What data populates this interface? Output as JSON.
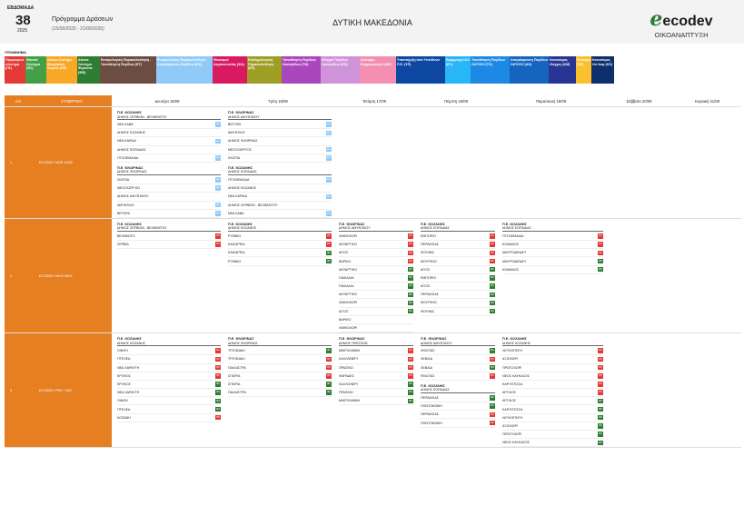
{
  "header": {
    "week_label": "ΕΒΔΟΜΑΔΑ",
    "week_number": "38",
    "year": "2025",
    "program_title": "Πρόγραμμα Δράσεων",
    "date_range": "(15/09/2025 - 21/09/2025)",
    "region": "ΔΥΤΙΚΗ ΜΑΚΕΔΟΝΙΑ",
    "logo_e": "e",
    "logo_text": "ecodev",
    "logo_sub": "ΟΙΚΟΑΝΑΠΤΥΞΗ",
    "brand_color": "#2e7d32"
  },
  "legend": {
    "title": "ΥΠΟΜΝΗΜΑ",
    "items": [
      {
        "label": "Περιμετρικό σύστημα (ΠΣ)",
        "color": "#e53935",
        "w": 23
      },
      {
        "label": "Φυσικό Σύστημα (ΦΣ)",
        "color": "#43a047",
        "w": 23
      },
      {
        "label": "Δίκτυα Σύστημα Θεωρητική Χώρων (ΘΧ)",
        "color": "#f9a825",
        "w": 34
      },
      {
        "label": "Δίκτυα Σύστημα Φεροντικ (ΦΦ)",
        "color": "#2e7d32",
        "w": 25
      },
      {
        "label": "Εντομολογική Παρακολούθηση - Τοποθέτηση Παγίδων (ΕΤ)",
        "color": "#6d4c41",
        "w": 62
      },
      {
        "label": "Εντομολογική Παρακολούθηση - Απομάκρυνση Παγίδων (ΕΑ)",
        "color": "#90caf9",
        "w": 62
      },
      {
        "label": "Ψεκασμοί Ακμαιοκτονίας (ΨΑ)",
        "color": "#d81b60",
        "w": 38
      },
      {
        "label": "Επιδημιολογική Παρακολούθηση (ΕΠ)",
        "color": "#9e9d24",
        "w": 38
      },
      {
        "label": "Τοποθέτηση Παγίδων Ωοπαγίδων (ΤΩ)",
        "color": "#ab47bc",
        "w": 43
      },
      {
        "label": "Ελέγχοι Παγίδων Ωοπαγίδων (ΕΩ)",
        "color": "#ce93d8",
        "w": 43
      },
      {
        "label": "Διανομές Ενημερωτικών (ΔΕ)",
        "color": "#f48fb1",
        "w": 40
      },
      {
        "label": "Υποστήριξη από Υπεύθυνο Π.Ε. (ΥΠ)",
        "color": "#0d47a1",
        "w": 54
      },
      {
        "label": "Εφαρμογή ULV (ΕΥ)",
        "color": "#29b6f6",
        "w": 28
      },
      {
        "label": "Τοποθέτηση Παγίδων GAT/OVI (ΤΟ)",
        "color": "#1e88e5",
        "w": 43
      },
      {
        "label": "Απομάκρυνση Παγίδων GAT/OVI (ΑΟ)",
        "color": "#1565c0",
        "w": 43
      },
      {
        "label": "Καινοτόμος έλεγχος (ΚΜ)",
        "color": "#283593",
        "w": 30
      },
      {
        "label": "Ψεκασμοί (ΨΣ)",
        "color": "#fbc02d",
        "w": 17
      },
      {
        "label": "Καινοτόμος Ovi trap (ΚΟ)",
        "color": "#0d2f6b",
        "w": 25
      }
    ]
  },
  "table": {
    "col_aa": "Α/Α",
    "col_team": "ΣΥΝΕΡΓΕΙΟ",
    "days": [
      "Δευτέρα 15/09",
      "Τρίτη 16/09",
      "Τετάρτη 17/09",
      "Πέμπτη 18/09",
      "Παρασκευή 19/09",
      "Σάββατο 20/09",
      "Κυριακή 21/09"
    ],
    "rows": [
      {
        "aa": "1",
        "team": "ECODEV NOE 9165",
        "days": [
          [
            {
              "pe": "Π.Ε. ΚΟΖΑΝΗΣ",
              "dimos": "ΔΗΜΟΣ ΣΕΡΒΙΩΝ - ΒΕΛΒΕΝΤΟΥ",
              "items": [
                {
                  "t": "ΝΕΑ ΛΑΒΑ",
                  "b": "ΕΑ"
                },
                {
                  "t": "ΔΗΜΟΣ ΚΟΖΑΝΗΣ",
                  "b": ""
                },
                {
                  "t": "ΝΕΑ ΚΑΡΔΙΑ",
                  "b": "ΕΑ"
                },
                {
                  "t": "ΔΗΜΟΣ ΕΟΡΔΑΙΑΣ",
                  "b": ""
                },
                {
                  "t": "ΠΤΟΛΕΜΑΙΔΑ",
                  "b": "ΕΑ"
                }
              ]
            },
            {
              "pe": "Π.Ε. ΦΛΩΡΙΝΑΣ",
              "dimos": "ΔΗΜΟΣ ΦΛΩΡΙΝΑΣ",
              "items": [
                {
                  "t": "ΣΚΟΠΙΑ",
                  "b": "ΕΑ"
                },
                {
                  "t": "ΜΕΣΟΧΩΡΙ ΚΟ",
                  "b": "ΕΑ"
                },
                {
                  "t": "ΔΗΜΟΣ ΑΜΥΝΤΑΙΟΥ",
                  "b": ""
                },
                {
                  "t": "ΑΜΥΝΤΑΙΟ",
                  "b": "ΕΑ"
                },
                {
                  "t": "ΒΕΤΕΡΑ",
                  "b": "ΕΑ"
                }
              ]
            }
          ],
          [
            {
              "pe": "Π.Ε. ΦΛΩΡΙΝΑΣ",
              "dimos": "ΔΗΜΟΣ ΑΜΥΝΤΑΙΟΥ",
              "items": [
                {
                  "t": "ΒΕΤΟΡΑ",
                  "b": "ΕΑ"
                },
                {
                  "t": "ΑΜΥΝΤΑΙΟ",
                  "b": "ΕΑ"
                },
                {
                  "t": "ΔΗΜΟΣ ΦΛΩΡΙΝΑΣ",
                  "b": ""
                },
                {
                  "t": "ΜΕΣΟΧΩΡΙΤΟΣ",
                  "b": "ΕΑ"
                },
                {
                  "t": "ΣΚΟΠΙΑ",
                  "b": "ΕΑ"
                }
              ]
            },
            {
              "pe": "Π.Ε. ΚΟΖΑΝΗΣ",
              "dimos": "ΔΗΜΟΣ ΕΟΡΔΑΙΑΣ",
              "items": [
                {
                  "t": "ΠΤΟΛΕΜΑΙΔΑ",
                  "b": "ΕΑ"
                },
                {
                  "t": "ΔΗΜΟΣ ΚΟΖΑΝΗΣ",
                  "b": ""
                },
                {
                  "t": "ΝΕΑ ΚΑΡΔΙΑ",
                  "b": "ΕΑ"
                },
                {
                  "t": "ΔΗΜΟΣ ΣΕΡΒΙΩΝ - ΒΕΛΒΕΝΤΟΥ",
                  "b": ""
                },
                {
                  "t": "ΝΕΑ ΛΑΒΑ",
                  "b": "ΕΑ"
                }
              ]
            }
          ],
          [],
          [],
          [],
          [],
          []
        ]
      },
      {
        "aa": "2",
        "team": "ECODEV NHO 8407",
        "days": [
          [
            {
              "pe": "Π.Ε. ΚΟΖΑΝΗΣ",
              "dimos": "ΔΗΜΟΣ ΣΕΡΒΙΩΝ - ΒΕΛΒΕΝΤΟΥ",
              "items": [
                {
                  "t": "ΒΕΛΒΕΝΤΟ",
                  "b": "ΠΣ"
                },
                {
                  "t": "ΣΕΡΒΙΑ",
                  "b": "ΠΣ"
                }
              ]
            }
          ],
          [
            {
              "pe": "Π.Ε. ΚΟΖΑΝΗΣ",
              "dimos": "ΔΗΜΟΣ ΚΟΖΑΝΗΣ",
              "items": [
                {
                  "t": "ΡΥΜΝΙΟ",
                  "b": "ΠΣ"
                },
                {
                  "t": "ΚΑΙΣΑΡΕΙΑ",
                  "b": "ΠΣ"
                },
                {
                  "t": "ΚΑΙΣΑΡΕΙΑ",
                  "b": "ΦΣ"
                },
                {
                  "t": "ΡΥΜΝΙΟ",
                  "b": "ΦΣ"
                }
              ]
            }
          ],
          [
            {
              "pe": "Π.Ε. ΦΛΩΡΙΝΑΣ",
              "dimos": "ΔΗΜΟΣ ΑΜΥΝΤΑΙΟΥ",
              "items": [
                {
                  "t": "ΛΙΜΝΟΧΩΡΙ",
                  "b": "ΠΣ"
                },
                {
                  "t": "ΑΝΤΑΡΤΙΚΟ",
                  "b": "ΠΣ"
                },
                {
                  "t": "ΑΓΙΟΣ",
                  "b": "ΠΣ"
                },
                {
                  "t": "ΒΑΡΙΚΟ",
                  "b": "ΠΣ"
                },
                {
                  "t": "ΑΝΤΑΡΤΙΚΟ",
                  "b": "ΦΣ"
                },
                {
                  "t": "ΠΑΙΚΑΛΙΑ",
                  "b": "ΦΣ"
                },
                {
                  "t": "ΠΑΙΚΑΛΙΑ",
                  "b": "ΦΣ"
                },
                {
                  "t": "ΑΝΤΑΡΤΙΚΟ",
                  "b": "ΦΣ"
                },
                {
                  "t": "ΛΙΜΝΟΧΩΡΙ",
                  "b": "ΦΣ"
                },
                {
                  "t": "ΑΓΙΟΣ",
                  "b": "ΦΣ"
                },
                {
                  "t": "ΒΑΡΙΚΟ",
                  "b": ""
                },
                {
                  "t": "ΛΙΜΝΟΧΩΡΙ",
                  "b": ""
                }
              ]
            }
          ],
          [
            {
              "pe": "Π.Ε. ΚΟΖΑΝΗΣ",
              "dimos": "ΔΗΜΟΣ ΕΟΡΔΑΙΑΣ",
              "items": [
                {
                  "t": "ΕΜΠΟΡΙΟ",
                  "b": "ΠΣ"
                },
                {
                  "t": "ΠΕΡΔΙΚΚΑΣ",
                  "b": "ΠΣ"
                },
                {
                  "t": "ΦΟΥΦΑΣ",
                  "b": "ΠΣ"
                },
                {
                  "t": "ΜΟΥΡΙΚΙΟ",
                  "b": "ΠΣ"
                },
                {
                  "t": "ΑΓΙΟΣ",
                  "b": "ΦΣ"
                },
                {
                  "t": "ΕΜΠΟΡΙΟ",
                  "b": "ΦΣ"
                },
                {
                  "t": "ΑΓΙΟΣ",
                  "b": "ΦΣ"
                },
                {
                  "t": "ΠΕΡΔΙΚΚΑΣ",
                  "b": "ΦΣ"
                },
                {
                  "t": "ΜΟΥΡΙΚΙΟ",
                  "b": "ΦΣ"
                },
                {
                  "t": "ΦΟΥΦΑΣ",
                  "b": "ΦΣ"
                }
              ]
            }
          ],
          [
            {
              "pe": "Π.Ε. ΚΟΖΑΝΗΣ",
              "dimos": "ΔΗΜΟΣ ΕΟΡΔΑΙΑΣ",
              "items": [
                {
                  "t": "ΠΤΟΛΕΜΑΙΔΑ",
                  "b": "ΠΣ"
                },
                {
                  "t": "ΚΟΜΑΝΟΣ",
                  "b": "ΠΣ"
                },
                {
                  "t": "ΜΑΥΡΟΔΕΝΔΡΙ",
                  "b": "ΠΣ"
                },
                {
                  "t": "ΜΑΥΡΟΔΕΝΔΡΙ",
                  "b": "ΦΣ"
                },
                {
                  "t": "ΚΟΜΑΝΟΣ",
                  "b": "ΦΣ"
                }
              ]
            }
          ],
          [],
          []
        ]
      },
      {
        "aa": "3",
        "team": "ECODEV PMY 7397",
        "days": [
          [
            {
              "pe": "Π.Ε. ΚΟΖΑΝΗΣ",
              "dimos": "ΔΗΜΟΣ ΚΟΖΑΝΗΣ",
              "items": [
                {
                  "t": "ΟΙΝΟΗ",
                  "b": "ΠΣ"
                },
                {
                  "t": "ΠΤΕΛΕΑ",
                  "b": "ΠΣ"
                },
                {
                  "t": "ΝΕΑ ΧΑΡΑΥΓΗ",
                  "b": "ΠΣ"
                },
                {
                  "t": "ΚΡΟΚΟΣ",
                  "b": "ΠΣ"
                },
                {
                  "t": "ΚΡΟΚΟΣ",
                  "b": "ΦΣ"
                },
                {
                  "t": "ΝΕΑ ΧΑΡΑΥΓΗ",
                  "b": "ΦΣ"
                },
                {
                  "t": "ΟΙΝΟΗ",
                  "b": "ΦΣ"
                },
                {
                  "t": "ΠΤΕΛΕΑ",
                  "b": "ΦΣ"
                },
                {
                  "t": "ΚΟΖΑΝΗ",
                  "b": "ΠΣ"
                }
              ]
            }
          ],
          [
            {
              "pe": "Π.Ε. ΦΛΩΡΙΝΑΣ",
              "dimos": "ΔΗΜΟΣ ΦΛΩΡΙΝΑΣ",
              "items": [
                {
                  "t": "ΤΡΙΓΩΝΑΚΙ",
                  "b": "ΦΣ"
                },
                {
                  "t": "ΤΡΙΓΩΝΑΚΙ",
                  "b": "ΠΣ"
                },
                {
                  "t": "ΠΑΛΑΙΣΤΡΑ",
                  "b": "ΠΣ"
                },
                {
                  "t": "ΣΙΤΑΡΙΑ",
                  "b": "ΠΣ"
                },
                {
                  "t": "ΣΙΤΑΡΙΑ",
                  "b": "ΦΣ"
                },
                {
                  "t": "ΠΑΛΑΙΣΤΡΑ",
                  "b": "ΦΣ"
                }
              ]
            }
          ],
          [
            {
              "pe": "Π.Ε. ΦΛΩΡΙΝΑΣ",
              "dimos": "ΔΗΜΟΣ ΠΡΕΣΠΩΝ",
              "items": [
                {
                  "t": "ΜΙΚΡΟΛΙΜΝΗ",
                  "b": "ΠΣ"
                },
                {
                  "t": "ΚΑΛΛΟΝΕΡΙ",
                  "b": "ΠΣ"
                },
                {
                  "t": "ΠΡΑΣΙΝΟ",
                  "b": "ΠΣ"
                },
                {
                  "t": "ΨΑΡΑΔΕΣ",
                  "b": "ΠΣ"
                },
                {
                  "t": "ΚΑΛΛΟΝΕΡΙ",
                  "b": "ΦΣ"
                },
                {
                  "t": "ΠΡΑΣΙΝΟ",
                  "b": "ΦΣ"
                },
                {
                  "t": "ΜΙΚΡΟΛΙΜΝΗ",
                  "b": "ΦΣ"
                }
              ]
            }
          ],
          [
            {
              "pe": "Π.Ε. ΦΛΩΡΙΝΑΣ",
              "dimos": "ΔΗΜΟΣ ΑΜΥΝΤΑΙΟΥ",
              "items": [
                {
                  "t": "ΦΙΛΩΤΑΣ",
                  "b": "ΦΣ"
                },
                {
                  "t": "ΛΕΒΑΙΑ",
                  "b": "ΠΣ"
                },
                {
                  "t": "ΛΕΒΑΙΑ",
                  "b": "ΦΣ"
                },
                {
                  "t": "ΦΙΛΩΤΑΣ",
                  "b": "ΠΣ"
                }
              ]
            },
            {
              "pe": "Π.Ε. ΚΟΖΑΝΗΣ",
              "dimos": "ΔΗΜΟΣ ΕΟΡΔΑΙΑΣ",
              "items": [
                {
                  "t": "ΠΕΡΔΙΚΚΑΣ",
                  "b": "ΦΣ"
                },
                {
                  "t": "ΠΟΝΤΟΚΩΜΗ",
                  "b": "ΦΣ"
                },
                {
                  "t": "ΠΕΡΔΙΚΚΑΣ",
                  "b": "ΠΣ"
                },
                {
                  "t": "ΠΟΝΤΟΚΩΜΗ",
                  "b": "ΠΣ"
                }
              ]
            }
          ],
          [
            {
              "pe": "Π.Ε. ΚΟΖΑΝΗΣ",
              "dimos": "ΔΗΜΟΣ ΚΟΖΑΝΗΣ",
              "items": [
                {
                  "t": "ΛΕΥΚΟΠΗΓΗ",
                  "b": "ΠΣ"
                },
                {
                  "t": "ΑΞΙΟΧΩΡΙ",
                  "b": "ΠΣ"
                },
                {
                  "t": "ΠΡΩΤΟΧΩΡΙ",
                  "b": "ΠΣ"
                },
                {
                  "t": "ΝΕΟΣ ΚΑΥΚΑΣΟΣ",
                  "b": "ΠΣ"
                },
                {
                  "t": "ΚΑΡΥΟΤΙΣΣΑ",
                  "b": "ΠΣ"
                },
                {
                  "t": "ΑΡΓΙΛΟΣ",
                  "b": "ΠΣ"
                },
                {
                  "t": "ΑΡΓΙΛΟΣ",
                  "b": "ΦΣ"
                },
                {
                  "t": "ΚΑΡΥΟΤΙΣΣΑ",
                  "b": "ΦΣ"
                },
                {
                  "t": "ΛΕΥΚΟΠΗΓΗ",
                  "b": "ΦΣ"
                },
                {
                  "t": "ΑΞΙΟΧΩΡΙ",
                  "b": "ΦΣ"
                },
                {
                  "t": "ΠΡΩΤΟΧΩΡΙ",
                  "b": "ΦΣ"
                },
                {
                  "t": "ΝΕΟΣ ΚΑΥΚΑΣΟΣ",
                  "b": "ΦΣ"
                }
              ]
            }
          ],
          [],
          []
        ]
      }
    ],
    "badge_colors": {
      "ΠΣ": "#e53935",
      "ΦΣ": "#2e7d32",
      "ΕΑ": "#90caf9"
    }
  }
}
